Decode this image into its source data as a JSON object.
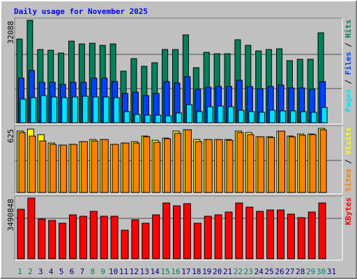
{
  "title": "Daily usage for November 2025",
  "legend_separator": " / ",
  "categories": [
    "1",
    "2",
    "3",
    "4",
    "5",
    "6",
    "7",
    "8",
    "9",
    "10",
    "11",
    "12",
    "13",
    "14",
    "15",
    "16",
    "17",
    "18",
    "19",
    "20",
    "21",
    "22",
    "23",
    "24",
    "25",
    "26",
    "27",
    "28",
    "29",
    "30",
    "31"
  ],
  "category_colors": [
    "#00805c",
    "#00805c",
    "#000080",
    "#000080",
    "#000080",
    "#000080",
    "#000080",
    "#00805c",
    "#00805c",
    "#000080",
    "#000080",
    "#000080",
    "#000080",
    "#000080",
    "#00805c",
    "#00805c",
    "#000080",
    "#000080",
    "#000080",
    "#000080",
    "#000080",
    "#00805c",
    "#00805c",
    "#000080",
    "#000080",
    "#000080",
    "#000080",
    "#000080",
    "#00805c",
    "#00805c",
    "#000080"
  ],
  "chart_data": [
    {
      "type": "bar",
      "ylim": [
        0,
        32088
      ],
      "yticks": [
        32088
      ],
      "grid_lines": [
        10696,
        21392
      ],
      "series": [
        {
          "name": "Hits",
          "color": "#00805c",
          "values": [
            26196,
            32088,
            22920,
            22700,
            21830,
            25540,
            24670,
            24890,
            24230,
            24670,
            16150,
            20080,
            17680,
            18770,
            22920,
            22920,
            27500,
            17250,
            22050,
            21610,
            21610,
            25980,
            24230,
            22480,
            22920,
            23140,
            19430,
            19860,
            19860,
            28160,
            0
          ]
        },
        {
          "name": "Files",
          "color": "#0040ff",
          "values": [
            13970,
            16370,
            12660,
            12660,
            12010,
            12660,
            12660,
            13970,
            13970,
            12880,
            9170,
            9600,
            8510,
            9170,
            12880,
            12440,
            14410,
            10480,
            11130,
            11350,
            11350,
            13320,
            11350,
            10700,
            11350,
            11790,
            10920,
            10920,
            10480,
            12880,
            0
          ]
        },
        {
          "name": "Pages",
          "color": "#00e0ff",
          "values": [
            7420,
            7860,
            8510,
            8080,
            7860,
            8080,
            8300,
            8080,
            8080,
            7860,
            3490,
            2620,
            2400,
            2400,
            2180,
            3060,
            5680,
            3490,
            5020,
            5240,
            5020,
            3930,
            3490,
            3270,
            3930,
            3710,
            3710,
            3490,
            3270,
            4800,
            0
          ]
        }
      ]
    },
    {
      "type": "bar",
      "ylim": [
        0,
        625
      ],
      "yticks": [
        625
      ],
      "grid_lines": [
        312.5
      ],
      "series": [
        {
          "name": "Visits",
          "color": "#ffff00",
          "values": [
            598,
            618,
            564,
            482,
            462,
            469,
            496,
            516,
            516,
            469,
            482,
            496,
            550,
            509,
            530,
            598,
            611,
            516,
            516,
            516,
            516,
            598,
            584,
            543,
            543,
            598,
            550,
            570,
            570,
            625,
            0
          ]
        },
        {
          "name": "Sites",
          "color": "#ff8000",
          "values": [
            584,
            550,
            502,
            469,
            462,
            469,
            496,
            502,
            516,
            469,
            482,
            482,
            543,
            489,
            523,
            577,
            611,
            496,
            516,
            516,
            509,
            584,
            564,
            543,
            536,
            598,
            543,
            557,
            564,
            611,
            0
          ]
        }
      ]
    },
    {
      "type": "bar",
      "ylim": [
        0,
        3490848
      ],
      "yticks": [
        3490848
      ],
      "grid_lines": [
        2327232
      ],
      "series": [
        {
          "name": "KBytes",
          "color": "#ff0000",
          "values": [
            2848900,
            3490848,
            2287100,
            2206900,
            2046400,
            2527900,
            2447600,
            2728500,
            2447600,
            2447600,
            1645100,
            2247000,
            2046400,
            2527900,
            3210000,
            3049500,
            3169900,
            2046400,
            2447600,
            2527900,
            2688400,
            3210000,
            2969300,
            2728500,
            2808800,
            2808800,
            2568000,
            2367400,
            2688400,
            3210000,
            0
          ]
        }
      ]
    }
  ]
}
